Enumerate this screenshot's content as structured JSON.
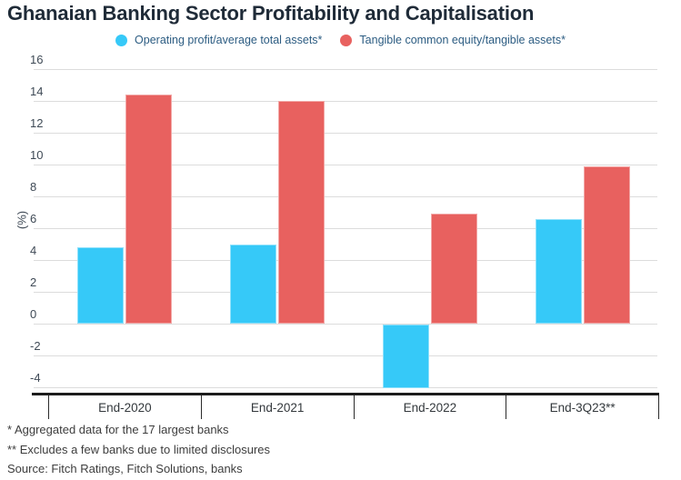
{
  "title": "Ghanaian Banking Sector Profitability and Capitalisation",
  "chart_data": {
    "type": "bar",
    "title": "Ghanaian Banking Sector Profitability and Capitalisation",
    "xlabel": "",
    "ylabel": "(%)",
    "categories": [
      "End-2020",
      "End-2021",
      "End-2022",
      "End-3Q23**"
    ],
    "series": [
      {
        "name": "Operating profit/average total assets*",
        "color": "#36c9f8",
        "values": [
          4.8,
          5.0,
          -4.0,
          6.6
        ]
      },
      {
        "name": "Tangible common equity/tangible assets*",
        "color": "#e8615f",
        "values": [
          14.4,
          14.0,
          6.9,
          9.9
        ]
      }
    ],
    "ylim": [
      -4,
      16
    ],
    "yticks": [
      16,
      14,
      12,
      10,
      8,
      6,
      4,
      2,
      0,
      -2,
      -4
    ],
    "grid": true,
    "legend_position": "top"
  },
  "footnotes": {
    "note1": "* Aggregated data for the 17 largest banks",
    "note2": "** Excludes a few banks due to limited disclosures",
    "source": "Source: Fitch Ratings, Fitch Solutions, banks"
  },
  "colors": {
    "series_blue": "#36c9f8",
    "series_red": "#e8615f",
    "gridline": "#dcdcdc",
    "axis_line": "#1c1c1c",
    "legend_text": "#2c5c82",
    "title_text": "#1f2b38"
  }
}
